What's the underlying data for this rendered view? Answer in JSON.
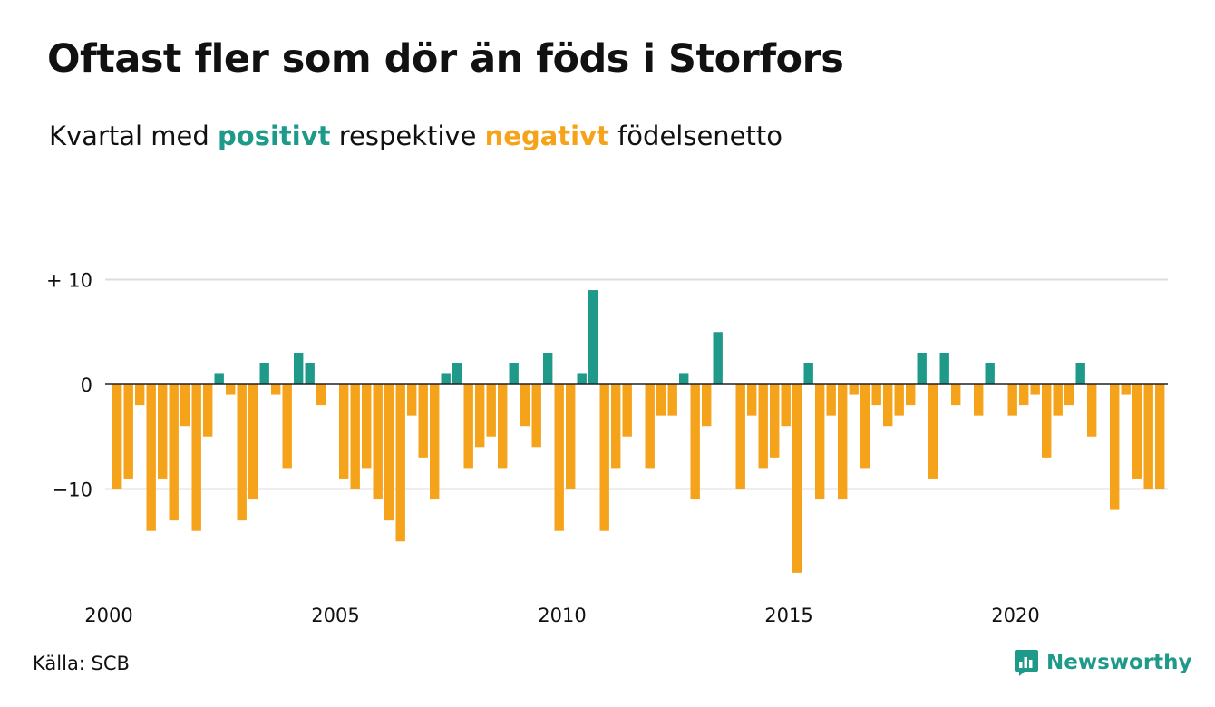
{
  "header": {
    "title": "Oftast fler som dör än föds i Storfors",
    "subtitle_prefix": "Kvartal med",
    "subtitle_positive": "positivt",
    "subtitle_middle": "respektive",
    "subtitle_negative": "negativt",
    "subtitle_suffix": "födelsenetto"
  },
  "footer": {
    "source": "Källa: SCB",
    "brand": "Newsworthy"
  },
  "colors": {
    "positive": "#1f9a8a",
    "negative": "#f5a31a",
    "gridline": "#dddddd",
    "zero_line": "#222222"
  },
  "chart_data": {
    "type": "bar",
    "title": "Oftast fler som dör än föds i Storfors",
    "subtitle": "Kvartal med positivt respektive negativt födelsenetto",
    "xlabel": "",
    "ylabel": "",
    "ylim": [
      -19,
      11
    ],
    "y_ticks": [
      {
        "value": 10,
        "label": "+ 10"
      },
      {
        "value": 0,
        "label": "0"
      },
      {
        "value": -10,
        "label": "−10"
      }
    ],
    "x_ticks": [
      2000,
      2005,
      2010,
      2015,
      2020
    ],
    "x_start_year": 2000,
    "periods_per_year": 4,
    "grid": true,
    "values": [
      -10,
      -9,
      -2,
      -14,
      -9,
      -13,
      -4,
      -14,
      -5,
      1,
      -1,
      -13,
      -11,
      2,
      -1,
      -8,
      3,
      2,
      -2,
      0,
      -9,
      -10,
      -8,
      -11,
      -13,
      -15,
      -3,
      -7,
      -11,
      1,
      2,
      -8,
      -6,
      -5,
      -8,
      2,
      -4,
      -6,
      3,
      -14,
      -10,
      1,
      9,
      -14,
      -8,
      -5,
      0,
      -8,
      -3,
      -3,
      1,
      -11,
      -4,
      5,
      0,
      -10,
      -3,
      -8,
      -7,
      -4,
      -18,
      2,
      -11,
      -3,
      -11,
      -1,
      -8,
      -2,
      -4,
      -3,
      -2,
      3,
      -9,
      3,
      -2,
      0,
      -3,
      2,
      0,
      -3,
      -2,
      -1,
      -7,
      -3,
      -2,
      2,
      -5,
      0,
      -12,
      -1,
      -9,
      -10,
      -10
    ]
  }
}
